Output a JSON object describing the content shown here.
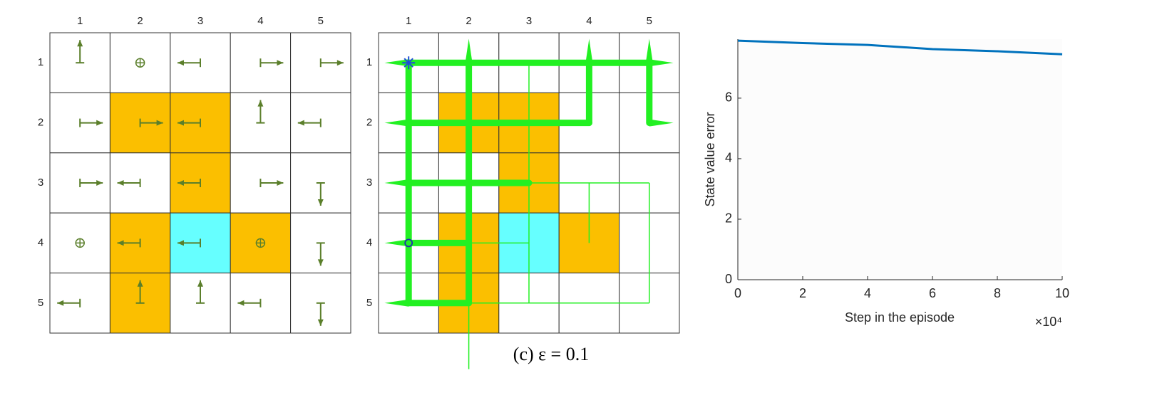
{
  "caption": "(c) ε = 0.1",
  "policy_grid": {
    "columns": [
      "1",
      "2",
      "3",
      "4",
      "5"
    ],
    "rows": [
      "1",
      "2",
      "3",
      "4",
      "5"
    ]
  },
  "trajectory_grid": {
    "columns": [
      "1",
      "2",
      "3",
      "4",
      "5"
    ],
    "rows": [
      "1",
      "2",
      "3",
      "4",
      "5"
    ]
  },
  "chart_data": {
    "type": "line",
    "x_label": "Step in the episode",
    "y_label": "State value error",
    "x_multiplier": "×10⁴",
    "x": [
      0,
      2,
      4,
      6,
      8,
      10
    ],
    "series": [
      {
        "name": "State value error",
        "color": "#0072bd",
        "values": [
          7.9,
          7.82,
          7.76,
          7.62,
          7.55,
          7.45
        ]
      }
    ],
    "xlim": [
      0,
      10
    ],
    "xticks": [
      0,
      2,
      4,
      6,
      8,
      10
    ],
    "ylim": [
      0,
      7.95
    ],
    "yticks": [
      0,
      2,
      4,
      6
    ]
  }
}
